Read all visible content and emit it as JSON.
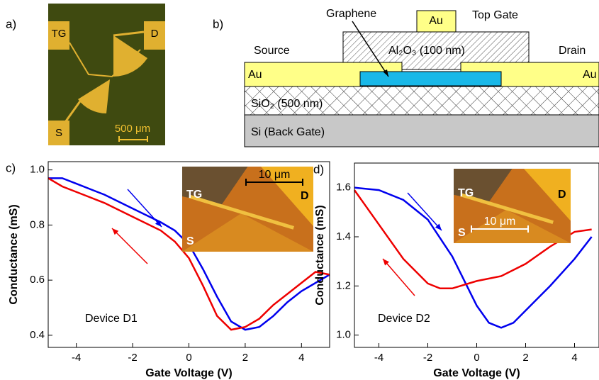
{
  "panel_a": {
    "label": "a)",
    "pads": [
      "TG",
      "D",
      "S"
    ],
    "scale_bar": "500 μm"
  },
  "panel_b": {
    "label": "b)",
    "graphene": "Graphene",
    "top_gate_metal": "Au",
    "top_gate": "Top Gate",
    "source": "Source",
    "dielectric": "Al₂O₃ (100 nm)",
    "drain": "Drain",
    "source_metal": "Au",
    "drain_metal": "Au",
    "oxide": "SiO₂ (500 nm)",
    "substrate": "Si (Back Gate)"
  },
  "chart_data": [
    {
      "type": "line",
      "panel_label": "c)",
      "x_label": "Gate Voltage (V)",
      "y_label": "Conductance (mS)",
      "annotation": "Device D1",
      "inset_labels": [
        "TG",
        "D",
        "S",
        "10 μm"
      ],
      "xlim": [
        -5,
        5
      ],
      "ylim": [
        0.356,
        1.03
      ],
      "xticks": [
        -4,
        -2,
        0,
        2,
        4
      ],
      "yticks": [
        0.4,
        0.6,
        0.8,
        {
          "value": 1,
          "label": "1.0"
        }
      ],
      "series": [
        {
          "color": "#0000ee",
          "x": [
            -5,
            -4.5,
            -4,
            -3,
            -2,
            -1,
            -0.5,
            0,
            0.5,
            1,
            1.5,
            2,
            2.5,
            3,
            3.5,
            4,
            5
          ],
          "values": [
            0.97,
            0.97,
            0.95,
            0.91,
            0.86,
            0.81,
            0.78,
            0.73,
            0.64,
            0.54,
            0.45,
            0.42,
            0.43,
            0.47,
            0.52,
            0.56,
            0.62
          ]
        },
        {
          "color": "#ee0000",
          "x": [
            -5,
            -4.5,
            -4,
            -3,
            -2,
            -1,
            -0.5,
            0,
            0.5,
            1,
            1.5,
            2,
            2.5,
            3,
            3.5,
            4,
            4.5,
            5
          ],
          "values": [
            0.97,
            0.94,
            0.92,
            0.88,
            0.83,
            0.78,
            0.74,
            0.68,
            0.58,
            0.47,
            0.42,
            0.43,
            0.46,
            0.51,
            0.55,
            0.59,
            0.63,
            0.62
          ]
        }
      ]
    },
    {
      "type": "line",
      "panel_label": "d)",
      "x_label": "Gate Voltage (V)",
      "y_label": "Conductance (mS)",
      "annotation": "Device D2",
      "inset_labels": [
        "TG",
        "D",
        "S",
        "10 μm"
      ],
      "xlim": [
        -5,
        5
      ],
      "ylim": [
        0.95,
        1.7
      ],
      "xticks": [
        -4,
        -2,
        0,
        2,
        4
      ],
      "yticks": [
        {
          "value": 1,
          "label": "1.0"
        },
        1.2,
        1.4,
        1.6
      ],
      "series": [
        {
          "color": "#0000ee",
          "x": [
            -5,
            -4,
            -3,
            -2,
            -1,
            -0.5,
            0,
            0.5,
            1,
            1.5,
            2,
            3,
            4,
            4.7
          ],
          "values": [
            1.6,
            1.59,
            1.55,
            1.47,
            1.32,
            1.22,
            1.12,
            1.05,
            1.03,
            1.05,
            1.1,
            1.2,
            1.31,
            1.4
          ]
        },
        {
          "color": "#ee0000",
          "x": [
            -5,
            -4,
            -3,
            -2,
            -1.5,
            -1,
            0,
            1,
            2,
            3,
            4,
            4.7
          ],
          "values": [
            1.59,
            1.45,
            1.31,
            1.21,
            1.19,
            1.19,
            1.22,
            1.24,
            1.29,
            1.36,
            1.42,
            1.43
          ]
        }
      ]
    }
  ]
}
